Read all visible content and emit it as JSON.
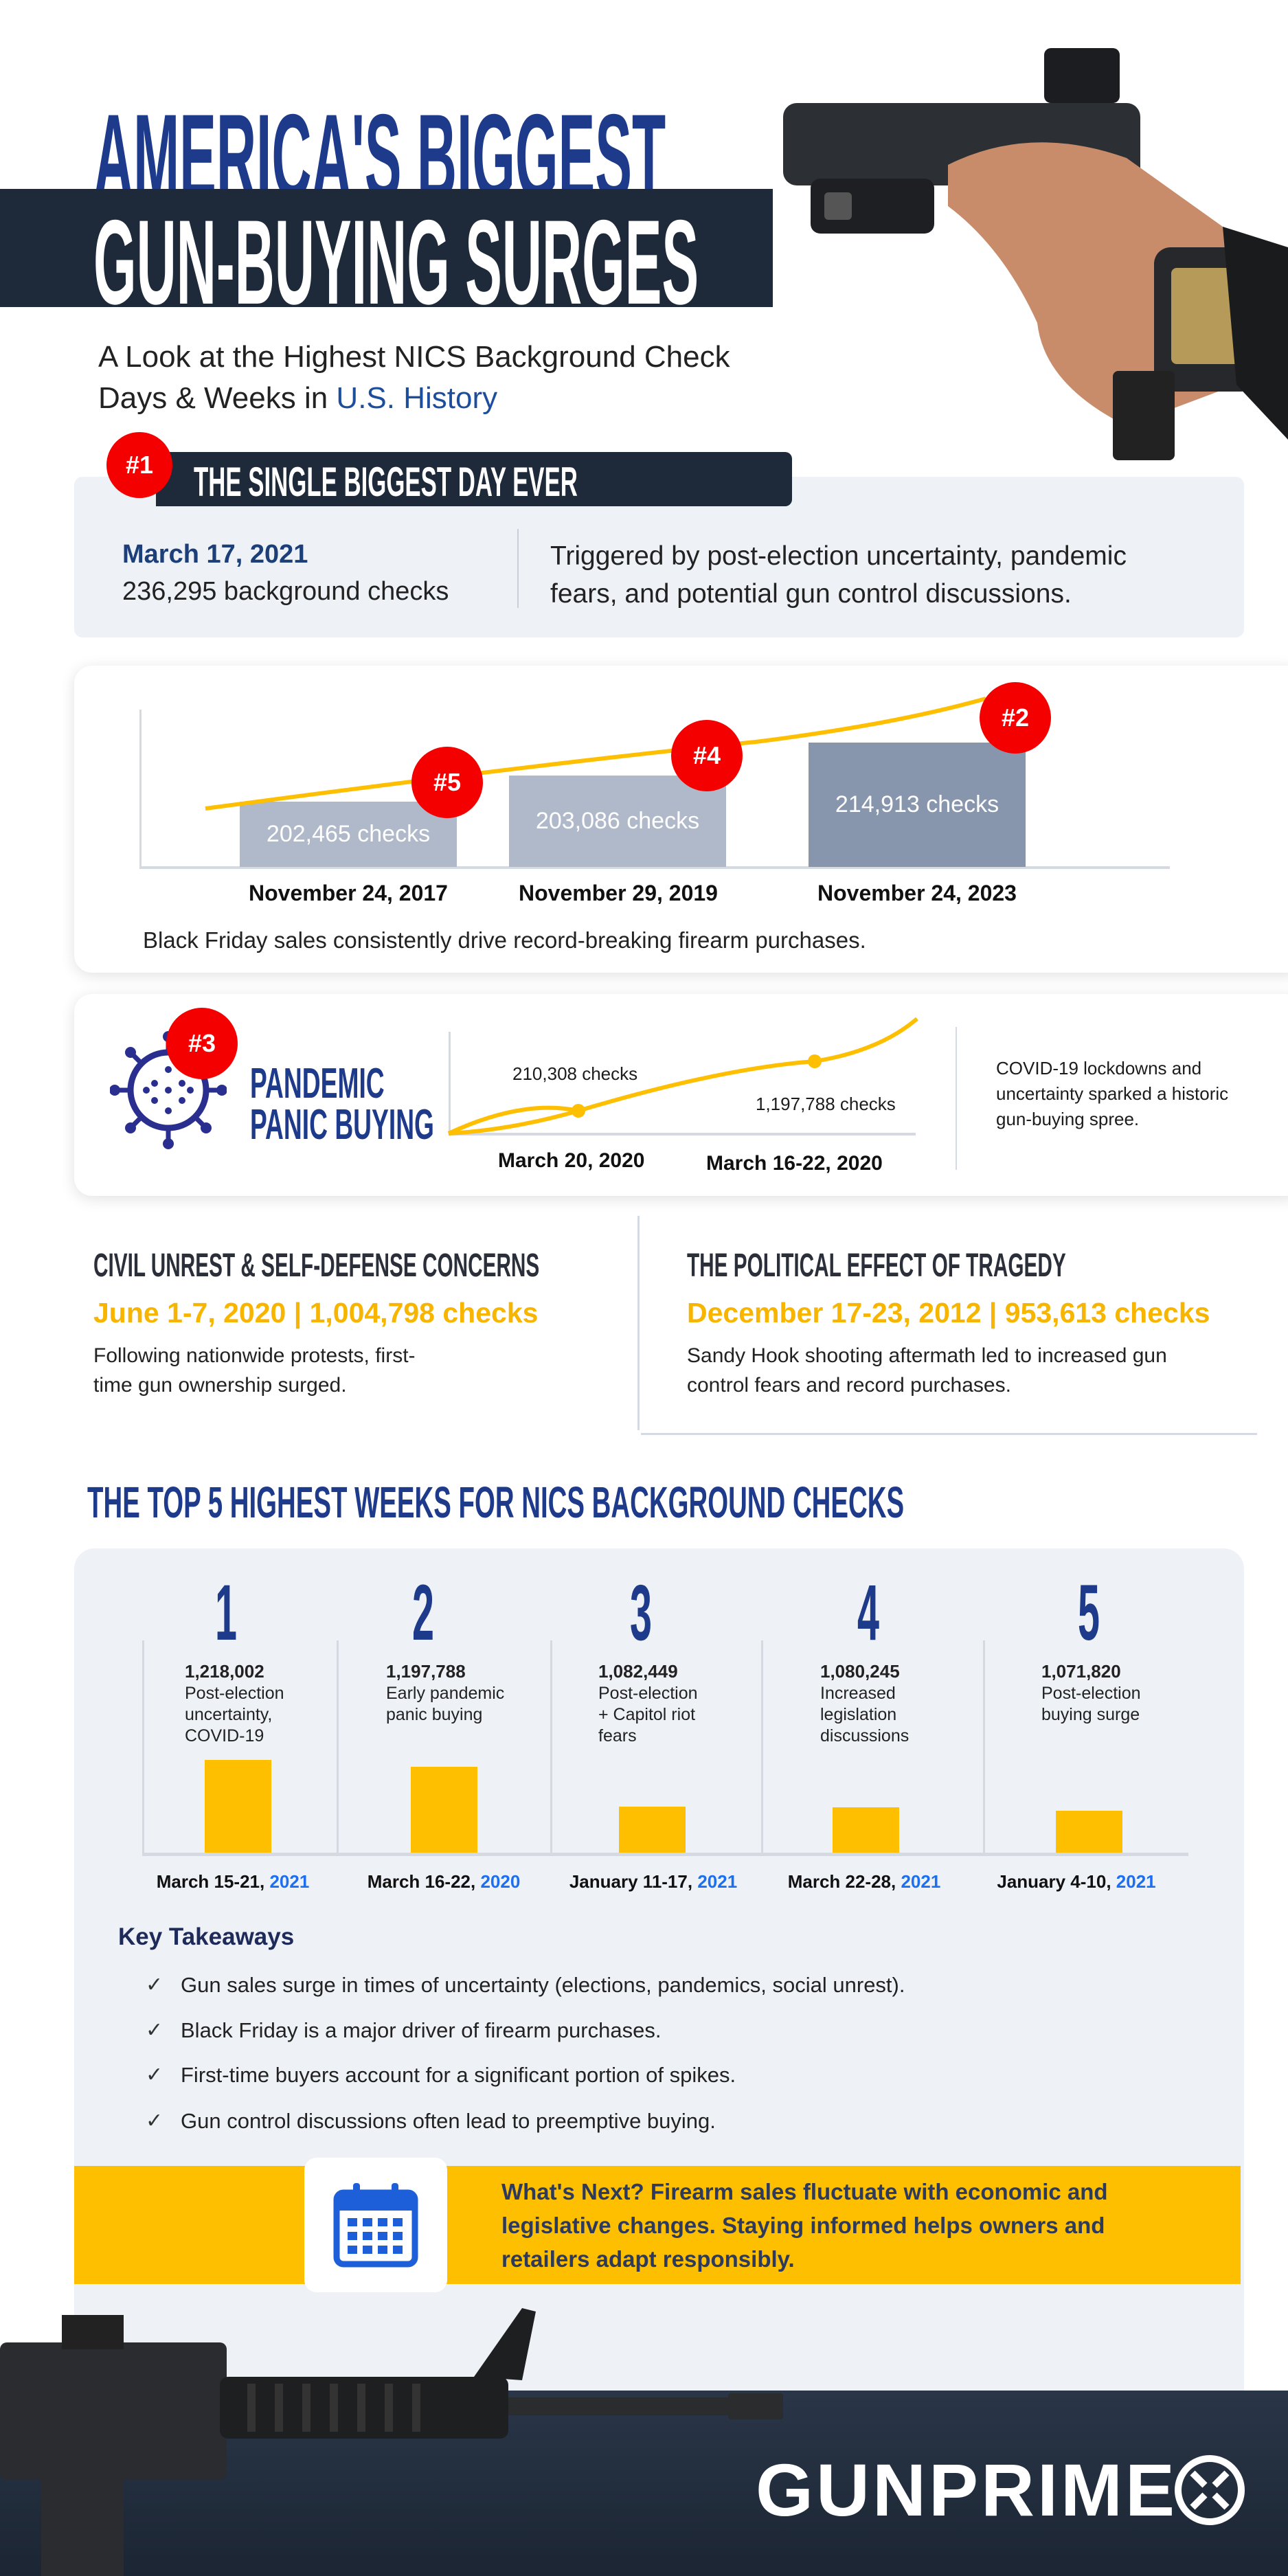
{
  "header": {
    "title_line1": "AMERICA'S BIGGEST",
    "title_line2": "GUN-BUYING SURGES",
    "subtitle_line1": "A Look at the Highest NICS Background Check",
    "subtitle_line2_prefix": "Days & Weeks in ",
    "subtitle_line2_highlight": "U.S. History"
  },
  "biggest_day": {
    "badge": "#1",
    "title": "THE SINGLE BIGGEST DAY EVER",
    "date": "March 17, 2021",
    "count": "236,295 background checks",
    "description_line1": "Triggered by post-election uncertainty, pandemic",
    "description_line2": "fears, and potential gun control discussions."
  },
  "black_friday": {
    "bars": [
      {
        "label": "202,465  checks",
        "date": "November 24, 2017",
        "badge": "#5",
        "value": 202465
      },
      {
        "label": "203,086 checks",
        "date": "November 29, 2019",
        "badge": "#4",
        "value": 203086
      },
      {
        "label": "214,913 checks",
        "date": "November 24, 2023",
        "badge": "#2",
        "value": 214913
      }
    ],
    "caption": "Black Friday sales consistently drive record-breaking firearm purchases."
  },
  "pandemic": {
    "badge": "#3",
    "title_line1": "PANDEMIC",
    "title_line2": "PANIC BUYING",
    "point1_label": "210,308 checks",
    "point1_date": "March 20, 2020",
    "point2_label": "1,197,788 checks",
    "point2_date": "March 16-22, 2020",
    "description_line1": "COVID-19 lockdowns and",
    "description_line2": "uncertainty sparked a historic",
    "description_line3": "gun-buying spree."
  },
  "civil_unrest": {
    "title": "CIVIL UNREST & SELF-DEFENSE CONCERNS",
    "stat": "June 1-7, 2020 | 1,004,798 checks",
    "body_line1": "Following nationwide protests, first-",
    "body_line2": "time gun ownership surged."
  },
  "tragedy": {
    "title": "THE POLITICAL EFFECT OF TRAGEDY",
    "stat": "December 17-23, 2012 | 953,613 checks",
    "body_line1": "Sandy Hook shooting aftermath led to increased gun",
    "body_line2": "control fears and record purchases."
  },
  "top5": {
    "title": "THE TOP 5 HIGHEST WEEKS FOR NICS BACKGROUND CHECKS"
  },
  "chart_data": {
    "type": "bar",
    "categories": [
      "1",
      "2",
      "3",
      "4",
      "5"
    ],
    "values": [
      1218002,
      1197788,
      1082449,
      1080245,
      1071820
    ],
    "value_labels": [
      "1,218,002",
      "1,197,788",
      "1,082,449",
      "1,080,245",
      "1,071,820"
    ],
    "descriptions": [
      [
        "Post-election",
        "uncertainty,",
        "COVID-19"
      ],
      [
        "Early pandemic",
        "panic buying"
      ],
      [
        "Post-election",
        "+ Capitol riot",
        "fears"
      ],
      [
        "Increased",
        "legislation",
        "discussions"
      ],
      [
        "Post-election",
        "buying surge"
      ]
    ],
    "dates": [
      "March 15-21, ",
      "March 16-22, ",
      "January 11-17, ",
      "March 22-28, ",
      "January 4-10, "
    ],
    "years": [
      "2021",
      "2020",
      "2021",
      "2021",
      "2021"
    ],
    "bar_color": "#fdbf00"
  },
  "takeaways": {
    "title": "Key Takeaways",
    "items": [
      "Gun sales surge in times of uncertainty (elections, pandemics, social unrest).",
      "Black Friday is a major driver of firearm purchases.",
      "First-time buyers account for a significant portion of spikes.",
      "Gun control discussions often lead to preemptive buying."
    ],
    "check": "✓"
  },
  "whats_next": {
    "line1": "What's Next? Firearm sales fluctuate with economic and",
    "line2": "legislative changes. Staying informed helps owners and",
    "line3": "retailers adapt responsibly.",
    "icon": "calendar-icon"
  },
  "footer": {
    "brand": "GUNPRIME"
  },
  "colors": {
    "navy": "#1e3a8a",
    "dark": "#1e2a3a",
    "red": "#f40000",
    "yellow": "#fdbf00",
    "panel": "#eef1f6"
  }
}
